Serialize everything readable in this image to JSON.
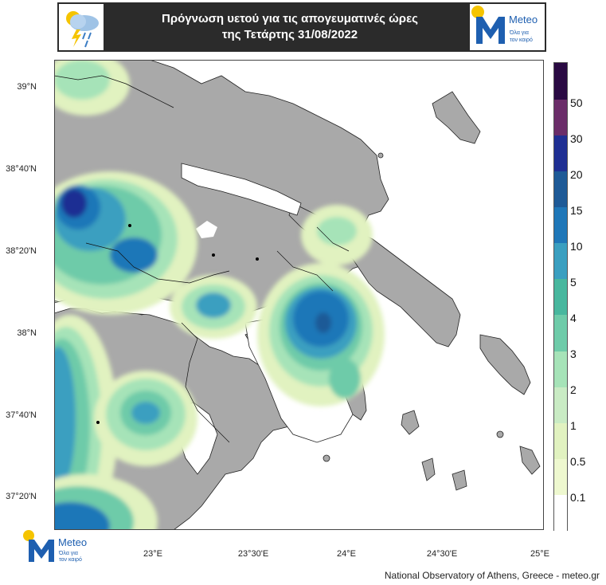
{
  "header": {
    "title_line1": "Πρόγνωση υετού για τις απογευματινές ώρες",
    "title_line2": "της Τετάρτης 31/08/2022",
    "left_icon": "rain-cloud-lightning-icon",
    "brand_color": "#1e5fb0"
  },
  "logo": {
    "name": "Meteo",
    "tagline_1": "Όλα για",
    "tagline_2": "τον καιρό",
    "sun_color": "#f5c400",
    "text_color": "#1e5fb0"
  },
  "map": {
    "lat_labels": [
      "39°N",
      "38°40'N",
      "38°20'N",
      "38°N",
      "37°40'N",
      "37°20'N"
    ],
    "lon_labels": [
      "23°E",
      "23°30'E",
      "24°E",
      "24°30'E",
      "25°E"
    ],
    "land_color": "#a9a9a9",
    "sea_color": "#ffffff"
  },
  "colorbar": {
    "labels": [
      "50",
      "30",
      "20",
      "15",
      "10",
      "5",
      "4",
      "3",
      "2",
      "1",
      "0.5",
      "0.1"
    ],
    "colors": [
      "#ffffff",
      "#eef8cf",
      "#e1f2c0",
      "#c9ebc4",
      "#a6e3b8",
      "#6ecba9",
      "#48b79e",
      "#3a9fc0",
      "#1f77b8",
      "#1e5a97",
      "#1f2f93",
      "#6b2d69",
      "#2a0a43"
    ]
  },
  "footer": "National Observatory of Athens, Greece - meteo.gr"
}
